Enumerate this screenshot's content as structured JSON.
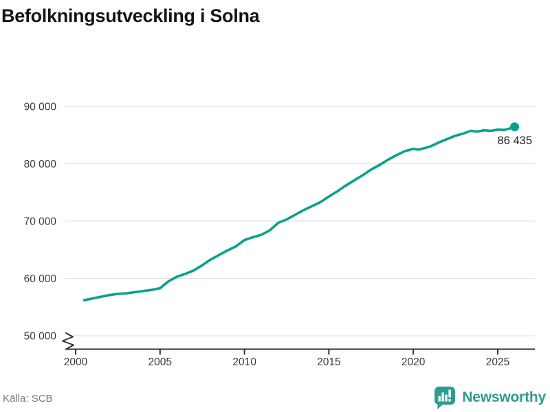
{
  "header": {
    "title": "Befolkningsutveckling i Solna"
  },
  "footer": {
    "source_label": "Källa: SCB",
    "brand_name": "Newsworthy"
  },
  "colors": {
    "line": "#0aa08f",
    "brand": "#2e9c90",
    "grid": "#e4e4e4",
    "axis": "#333333",
    "tick_text": "#3a3a3a",
    "title_text": "#141414",
    "source_text": "#7a7a7a",
    "value_label_text": "#222222",
    "background": "#ffffff"
  },
  "chart_data": {
    "type": "line",
    "title": "Befolkningsutveckling i Solna",
    "xlabel": "",
    "ylabel": "",
    "grid": "horizontal",
    "legend": "none",
    "axis_break_below_ymin": true,
    "xlim": [
      1999.39,
      2027.2
    ],
    "ylim": [
      50000,
      90000
    ],
    "xticks": [
      2000,
      2005,
      2010,
      2015,
      2020,
      2025
    ],
    "xtick_labels": [
      "2000",
      "2005",
      "2010",
      "2015",
      "2020",
      "2025"
    ],
    "yticks": [
      50000,
      60000,
      70000,
      80000,
      90000
    ],
    "ytick_labels": [
      "50 000",
      "60 000",
      "70 000",
      "80 000",
      "90 000"
    ],
    "last_point_label": "86 435",
    "last_point_value": 86435,
    "source": "SCB",
    "series": [
      {
        "points": [
          [
            2000.5,
            56200
          ],
          [
            2001,
            56500
          ],
          [
            2001.5,
            56800
          ],
          [
            2002,
            57100
          ],
          [
            2002.5,
            57300
          ],
          [
            2003,
            57400
          ],
          [
            2003.5,
            57600
          ],
          [
            2004,
            57800
          ],
          [
            2004.5,
            58000
          ],
          [
            2005,
            58300
          ],
          [
            2005.5,
            59500
          ],
          [
            2006,
            60300
          ],
          [
            2006.5,
            60800
          ],
          [
            2007,
            61400
          ],
          [
            2007.5,
            62300
          ],
          [
            2008,
            63300
          ],
          [
            2008.5,
            64100
          ],
          [
            2009,
            64900
          ],
          [
            2009.5,
            65600
          ],
          [
            2010,
            66700
          ],
          [
            2010.5,
            67200
          ],
          [
            2011,
            67600
          ],
          [
            2011.5,
            68400
          ],
          [
            2012,
            69700
          ],
          [
            2012.5,
            70300
          ],
          [
            2013,
            71100
          ],
          [
            2013.5,
            71900
          ],
          [
            2014,
            72600
          ],
          [
            2014.5,
            73300
          ],
          [
            2015,
            74300
          ],
          [
            2015.5,
            75200
          ],
          [
            2016,
            76200
          ],
          [
            2016.5,
            77100
          ],
          [
            2017,
            78000
          ],
          [
            2017.5,
            79000
          ],
          [
            2018,
            79800
          ],
          [
            2018.5,
            80700
          ],
          [
            2019,
            81500
          ],
          [
            2019.5,
            82200
          ],
          [
            2020,
            82600
          ],
          [
            2020.3,
            82450
          ],
          [
            2020.7,
            82750
          ],
          [
            2021,
            83000
          ],
          [
            2021.5,
            83700
          ],
          [
            2022,
            84300
          ],
          [
            2022.5,
            84900
          ],
          [
            2023,
            85300
          ],
          [
            2023.4,
            85750
          ],
          [
            2023.8,
            85600
          ],
          [
            2024.2,
            85850
          ],
          [
            2024.6,
            85750
          ],
          [
            2025,
            85950
          ],
          [
            2025.4,
            85900
          ],
          [
            2025.7,
            86150
          ],
          [
            2026,
            86435
          ]
        ]
      }
    ]
  }
}
